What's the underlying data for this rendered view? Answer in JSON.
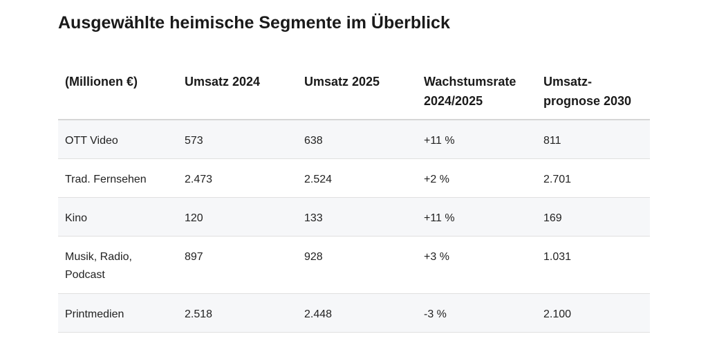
{
  "title": "Ausgewählte heimische Segmente im Überblick",
  "table": {
    "headers": [
      "(Millionen €)",
      "Umsatz 2024",
      "Umsatz 2025",
      "Wachstumsrate 2024/2025",
      "Umsatz-prognose 2030"
    ],
    "rows": [
      [
        "OTT Video",
        "573",
        "638",
        "+11 %",
        "811"
      ],
      [
        "Trad. Fernsehen",
        "2.473",
        "2.524",
        "+2 %",
        "2.701"
      ],
      [
        "Kino",
        "120",
        "133",
        "+11 %",
        "169"
      ],
      [
        "Musik, Radio, Podcast",
        "897",
        "928",
        "+3 %",
        "1.031"
      ],
      [
        "Printmedien",
        "2.518",
        "2.448",
        "-3 %",
        "2.100"
      ]
    ]
  }
}
